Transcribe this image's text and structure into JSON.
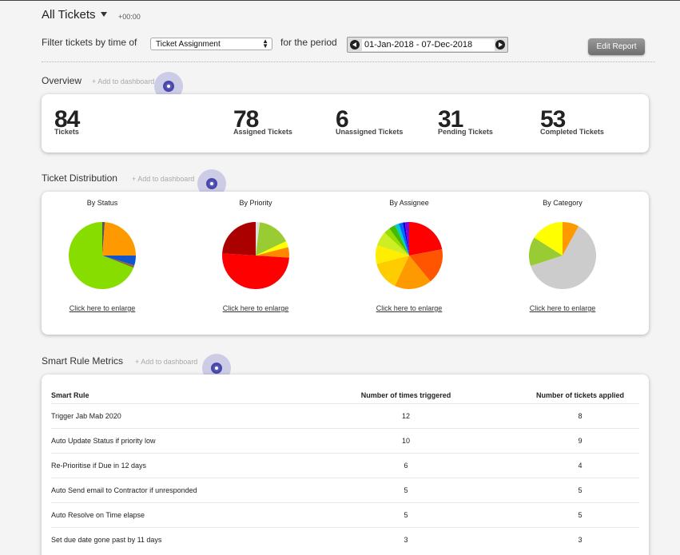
{
  "header": {
    "title": "All Tickets",
    "timezone": "+00:00"
  },
  "filter": {
    "label": "Filter tickets by time of",
    "select_value": "Ticket Assignment",
    "period_label": "for the period",
    "date_range": "01-Jan-2018 - 07-Dec-2018",
    "edit_report_label": "Edit Report"
  },
  "overview": {
    "title": "Overview",
    "add_to_dashboard": "+ Add to dashboard",
    "stats": [
      {
        "value": "84",
        "label": "Tickets"
      },
      {
        "value": "78",
        "label": "Assigned Tickets"
      },
      {
        "value": "6",
        "label": "Unassigned Tickets"
      },
      {
        "value": "31",
        "label": "Pending Tickets"
      },
      {
        "value": "53",
        "label": "Completed Tickets"
      }
    ]
  },
  "distribution": {
    "title": "Ticket Distribution",
    "add_to_dashboard": "+ Add to dashboard",
    "enlarge_label": "Click here to enlarge",
    "charts": [
      {
        "title": "By Status"
      },
      {
        "title": "By Priority"
      },
      {
        "title": "By Assignee"
      },
      {
        "title": "By Category"
      }
    ]
  },
  "chart_data": [
    {
      "type": "pie",
      "title": "By Status",
      "values": [
        1,
        20,
        4,
        1,
        58
      ],
      "colors": [
        "#555555",
        "#ff9900",
        "#1155cc",
        "#8a6a2a",
        "#88dd00"
      ]
    },
    {
      "type": "pie",
      "title": "By Priority",
      "values": [
        2,
        16,
        3,
        5,
        50,
        24
      ],
      "colors": [
        "#dddddd",
        "#99cc33",
        "#ffff00",
        "#ff8800",
        "#ff0000",
        "#aa0000"
      ]
    },
    {
      "type": "pie",
      "title": "By Assignee",
      "values": [
        22,
        17,
        18,
        14,
        9,
        7,
        3,
        3,
        2,
        2,
        1,
        2
      ],
      "colors": [
        "#ff0000",
        "#ff5500",
        "#ff9900",
        "#ffcc00",
        "#ffee00",
        "#ccee22",
        "#99dd00",
        "#44bb00",
        "#00cccc",
        "#0066ff",
        "#0000cc",
        "#8800cc"
      ]
    },
    {
      "type": "pie",
      "title": "By Category",
      "values": [
        8,
        62,
        14,
        16
      ],
      "colors": [
        "#ff9900",
        "#cccccc",
        "#99cc33",
        "#ffff00"
      ]
    }
  ],
  "smart_rules": {
    "title": "Smart Rule Metrics",
    "add_to_dashboard": "+ Add to dashboard",
    "columns": [
      "Smart Rule",
      "Number of times triggered",
      "Number of tickets applied"
    ],
    "rows": [
      [
        "Trigger Jab Mab 2020",
        "12",
        "8"
      ],
      [
        "Auto Update Status if priority low",
        "10",
        "9"
      ],
      [
        "Re-Prioritise if Due in 12 days",
        "6",
        "4"
      ],
      [
        "Auto Send email to Contractor if unresponded",
        "5",
        "5"
      ],
      [
        "Auto Resolve on Time elapse",
        "5",
        "5"
      ],
      [
        "Set due date gone past by 11 days",
        "3",
        "3"
      ]
    ]
  }
}
